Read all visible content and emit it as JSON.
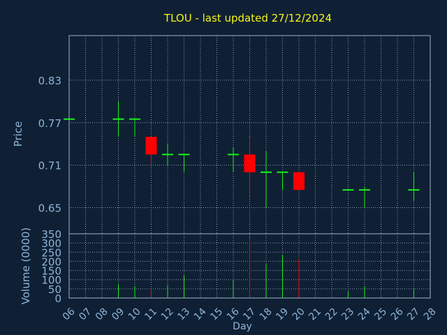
{
  "chart_data": {
    "type": "candlestick",
    "title": "TLOU - last updated 27/12/2024",
    "xlabel": "Day",
    "x_ticks": [
      "06",
      "07",
      "08",
      "09",
      "10",
      "11",
      "12",
      "13",
      "14",
      "15",
      "16",
      "17",
      "18",
      "19",
      "20",
      "21",
      "22",
      "23",
      "24",
      "25",
      "26",
      "27",
      "28"
    ],
    "price_panel": {
      "ylabel": "Price",
      "ylim": [
        0.613,
        0.893
      ],
      "y_ticks": [
        "0.83",
        "0.77",
        "0.71",
        "0.65"
      ],
      "grid": true
    },
    "volume_panel": {
      "ylabel": "Volume (0000)",
      "ylim": [
        0,
        350
      ],
      "y_ticks": [
        "0",
        "50",
        "100",
        "150",
        "200",
        "250",
        "300",
        "350"
      ],
      "grid": true
    },
    "candles": [
      {
        "day": "06",
        "open": 0.775,
        "high": 0.775,
        "low": 0.775,
        "close": 0.775,
        "volume": 0
      },
      {
        "day": "09",
        "open": 0.775,
        "high": 0.8,
        "low": 0.75,
        "close": 0.775,
        "volume": 75
      },
      {
        "day": "10",
        "open": 0.775,
        "high": 0.775,
        "low": 0.75,
        "close": 0.775,
        "volume": 65
      },
      {
        "day": "11",
        "open": 0.75,
        "high": 0.75,
        "low": 0.71,
        "close": 0.725,
        "volume": 45
      },
      {
        "day": "12",
        "open": 0.725,
        "high": 0.74,
        "low": 0.71,
        "close": 0.725,
        "volume": 70
      },
      {
        "day": "13",
        "open": 0.725,
        "high": 0.725,
        "low": 0.7,
        "close": 0.725,
        "volume": 125
      },
      {
        "day": "16",
        "open": 0.725,
        "high": 0.735,
        "low": 0.7,
        "close": 0.725,
        "volume": 100
      },
      {
        "day": "17",
        "open": 0.725,
        "high": 0.75,
        "low": 0.665,
        "close": 0.7,
        "volume": 335
      },
      {
        "day": "18",
        "open": 0.7,
        "high": 0.73,
        "low": 0.65,
        "close": 0.7,
        "volume": 190
      },
      {
        "day": "19",
        "open": 0.7,
        "high": 0.7,
        "low": 0.675,
        "close": 0.7,
        "volume": 235
      },
      {
        "day": "20",
        "open": 0.7,
        "high": 0.7,
        "low": 0.675,
        "close": 0.675,
        "volume": 215
      },
      {
        "day": "23",
        "open": 0.675,
        "high": 0.675,
        "low": 0.675,
        "close": 0.675,
        "volume": 35
      },
      {
        "day": "24",
        "open": 0.675,
        "high": 0.68,
        "low": 0.65,
        "close": 0.675,
        "volume": 65
      },
      {
        "day": "27",
        "open": 0.675,
        "high": 0.7,
        "low": 0.66,
        "close": 0.675,
        "volume": 45
      }
    ],
    "colors": {
      "background": "#0f2034",
      "title": "#f5f51b",
      "axis_text": "#8fb4d9",
      "frame": "#9fb2c6",
      "grid": "#8a9aab",
      "up": "#19f019",
      "down": "#ff0000"
    }
  }
}
